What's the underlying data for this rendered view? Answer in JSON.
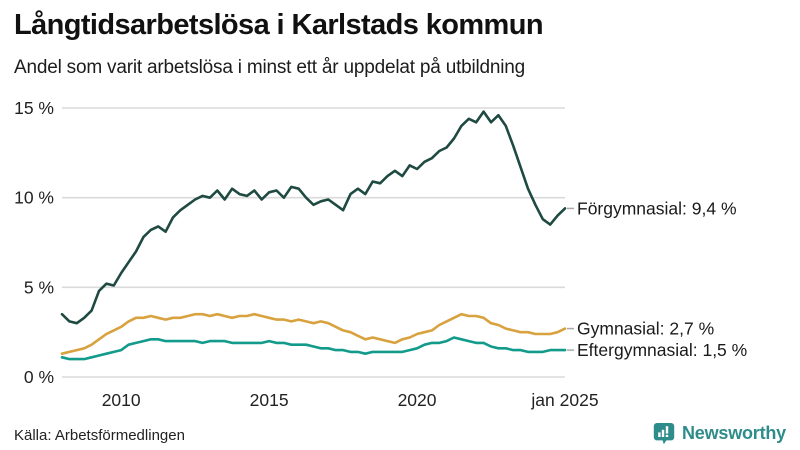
{
  "header": {
    "title": "Långtidsarbetslösa i Karlstads kommun",
    "subtitle": "Andel som varit arbetslösa i minst ett år uppdelat på utbildning"
  },
  "footer": {
    "source": "Källa: Arbetsförmedlingen",
    "brand": "Newsworthy",
    "brand_color": "#2e8c8b",
    "brand_icon": "bar-chart-speech-bubble"
  },
  "chart_data": {
    "type": "line",
    "title": "Långtidsarbetslösa i Karlstads kommun",
    "subtitle": "Andel som varit arbetslösa i minst ett år uppdelat på utbildning",
    "xlabel": "",
    "ylabel": "",
    "x_start": 2008,
    "x_end": 2025,
    "x_step": 0.25,
    "ylim": [
      0,
      15
    ],
    "grid": true,
    "gridline_color": "#dadada",
    "legend_position": "end-labels-right",
    "yticks": [
      {
        "value": 0,
        "label": "0 %"
      },
      {
        "value": 5,
        "label": "5 %"
      },
      {
        "value": 10,
        "label": "10 %"
      },
      {
        "value": 15,
        "label": "15 %"
      }
    ],
    "xticks": [
      {
        "value": 2010,
        "label": "2010"
      },
      {
        "value": 2015,
        "label": "2015"
      },
      {
        "value": 2020,
        "label": "2020"
      },
      {
        "value": 2025,
        "label": "jan 2025"
      }
    ],
    "series": [
      {
        "id": "forgymnasial",
        "name": "Förgymnasial",
        "end_label": "Förgymnasial: 9,4 %",
        "last_value": "9,4 %",
        "color": "#1f4a42",
        "values": [
          3.5,
          3.1,
          3.0,
          3.3,
          3.7,
          4.8,
          5.2,
          5.1,
          5.8,
          6.4,
          7.0,
          7.8,
          8.2,
          8.4,
          8.1,
          8.9,
          9.3,
          9.6,
          9.9,
          10.1,
          10.0,
          10.4,
          9.9,
          10.5,
          10.2,
          10.1,
          10.4,
          9.9,
          10.3,
          10.4,
          10.0,
          10.6,
          10.5,
          10.0,
          9.6,
          9.8,
          9.9,
          9.6,
          9.3,
          10.2,
          10.5,
          10.2,
          10.9,
          10.8,
          11.2,
          11.5,
          11.2,
          11.8,
          11.6,
          12.0,
          12.2,
          12.6,
          12.8,
          13.3,
          14.0,
          14.4,
          14.2,
          14.8,
          14.2,
          14.6,
          14.0,
          12.9,
          11.7,
          10.5,
          9.6,
          8.8,
          8.5,
          9.0,
          9.4
        ]
      },
      {
        "id": "gymnasial",
        "name": "Gymnasial",
        "end_label": "Gymnasial: 2,7 %",
        "last_value": "2,7 %",
        "color": "#d8a23f",
        "values": [
          1.3,
          1.4,
          1.5,
          1.6,
          1.8,
          2.1,
          2.4,
          2.6,
          2.8,
          3.1,
          3.3,
          3.3,
          3.4,
          3.3,
          3.2,
          3.3,
          3.3,
          3.4,
          3.5,
          3.5,
          3.4,
          3.5,
          3.4,
          3.3,
          3.4,
          3.4,
          3.5,
          3.4,
          3.3,
          3.2,
          3.2,
          3.1,
          3.2,
          3.1,
          3.0,
          3.1,
          3.0,
          2.8,
          2.6,
          2.5,
          2.3,
          2.1,
          2.2,
          2.1,
          2.0,
          1.9,
          2.1,
          2.2,
          2.4,
          2.5,
          2.6,
          2.9,
          3.1,
          3.3,
          3.5,
          3.4,
          3.4,
          3.3,
          3.0,
          2.9,
          2.7,
          2.6,
          2.5,
          2.5,
          2.4,
          2.4,
          2.4,
          2.5,
          2.7
        ]
      },
      {
        "id": "eftergymnasial",
        "name": "Eftergymnasial",
        "end_label": "Eftergymnasial: 1,5 %",
        "last_value": "1,5 %",
        "color": "#129b8b",
        "values": [
          1.1,
          1.0,
          1.0,
          1.0,
          1.1,
          1.2,
          1.3,
          1.4,
          1.5,
          1.8,
          1.9,
          2.0,
          2.1,
          2.1,
          2.0,
          2.0,
          2.0,
          2.0,
          2.0,
          1.9,
          2.0,
          2.0,
          2.0,
          1.9,
          1.9,
          1.9,
          1.9,
          1.9,
          2.0,
          1.9,
          1.9,
          1.8,
          1.8,
          1.8,
          1.7,
          1.6,
          1.6,
          1.5,
          1.5,
          1.4,
          1.4,
          1.3,
          1.4,
          1.4,
          1.4,
          1.4,
          1.4,
          1.5,
          1.6,
          1.8,
          1.9,
          1.9,
          2.0,
          2.2,
          2.1,
          2.0,
          1.9,
          1.9,
          1.7,
          1.6,
          1.6,
          1.5,
          1.5,
          1.4,
          1.4,
          1.4,
          1.5,
          1.5,
          1.5
        ]
      }
    ]
  }
}
